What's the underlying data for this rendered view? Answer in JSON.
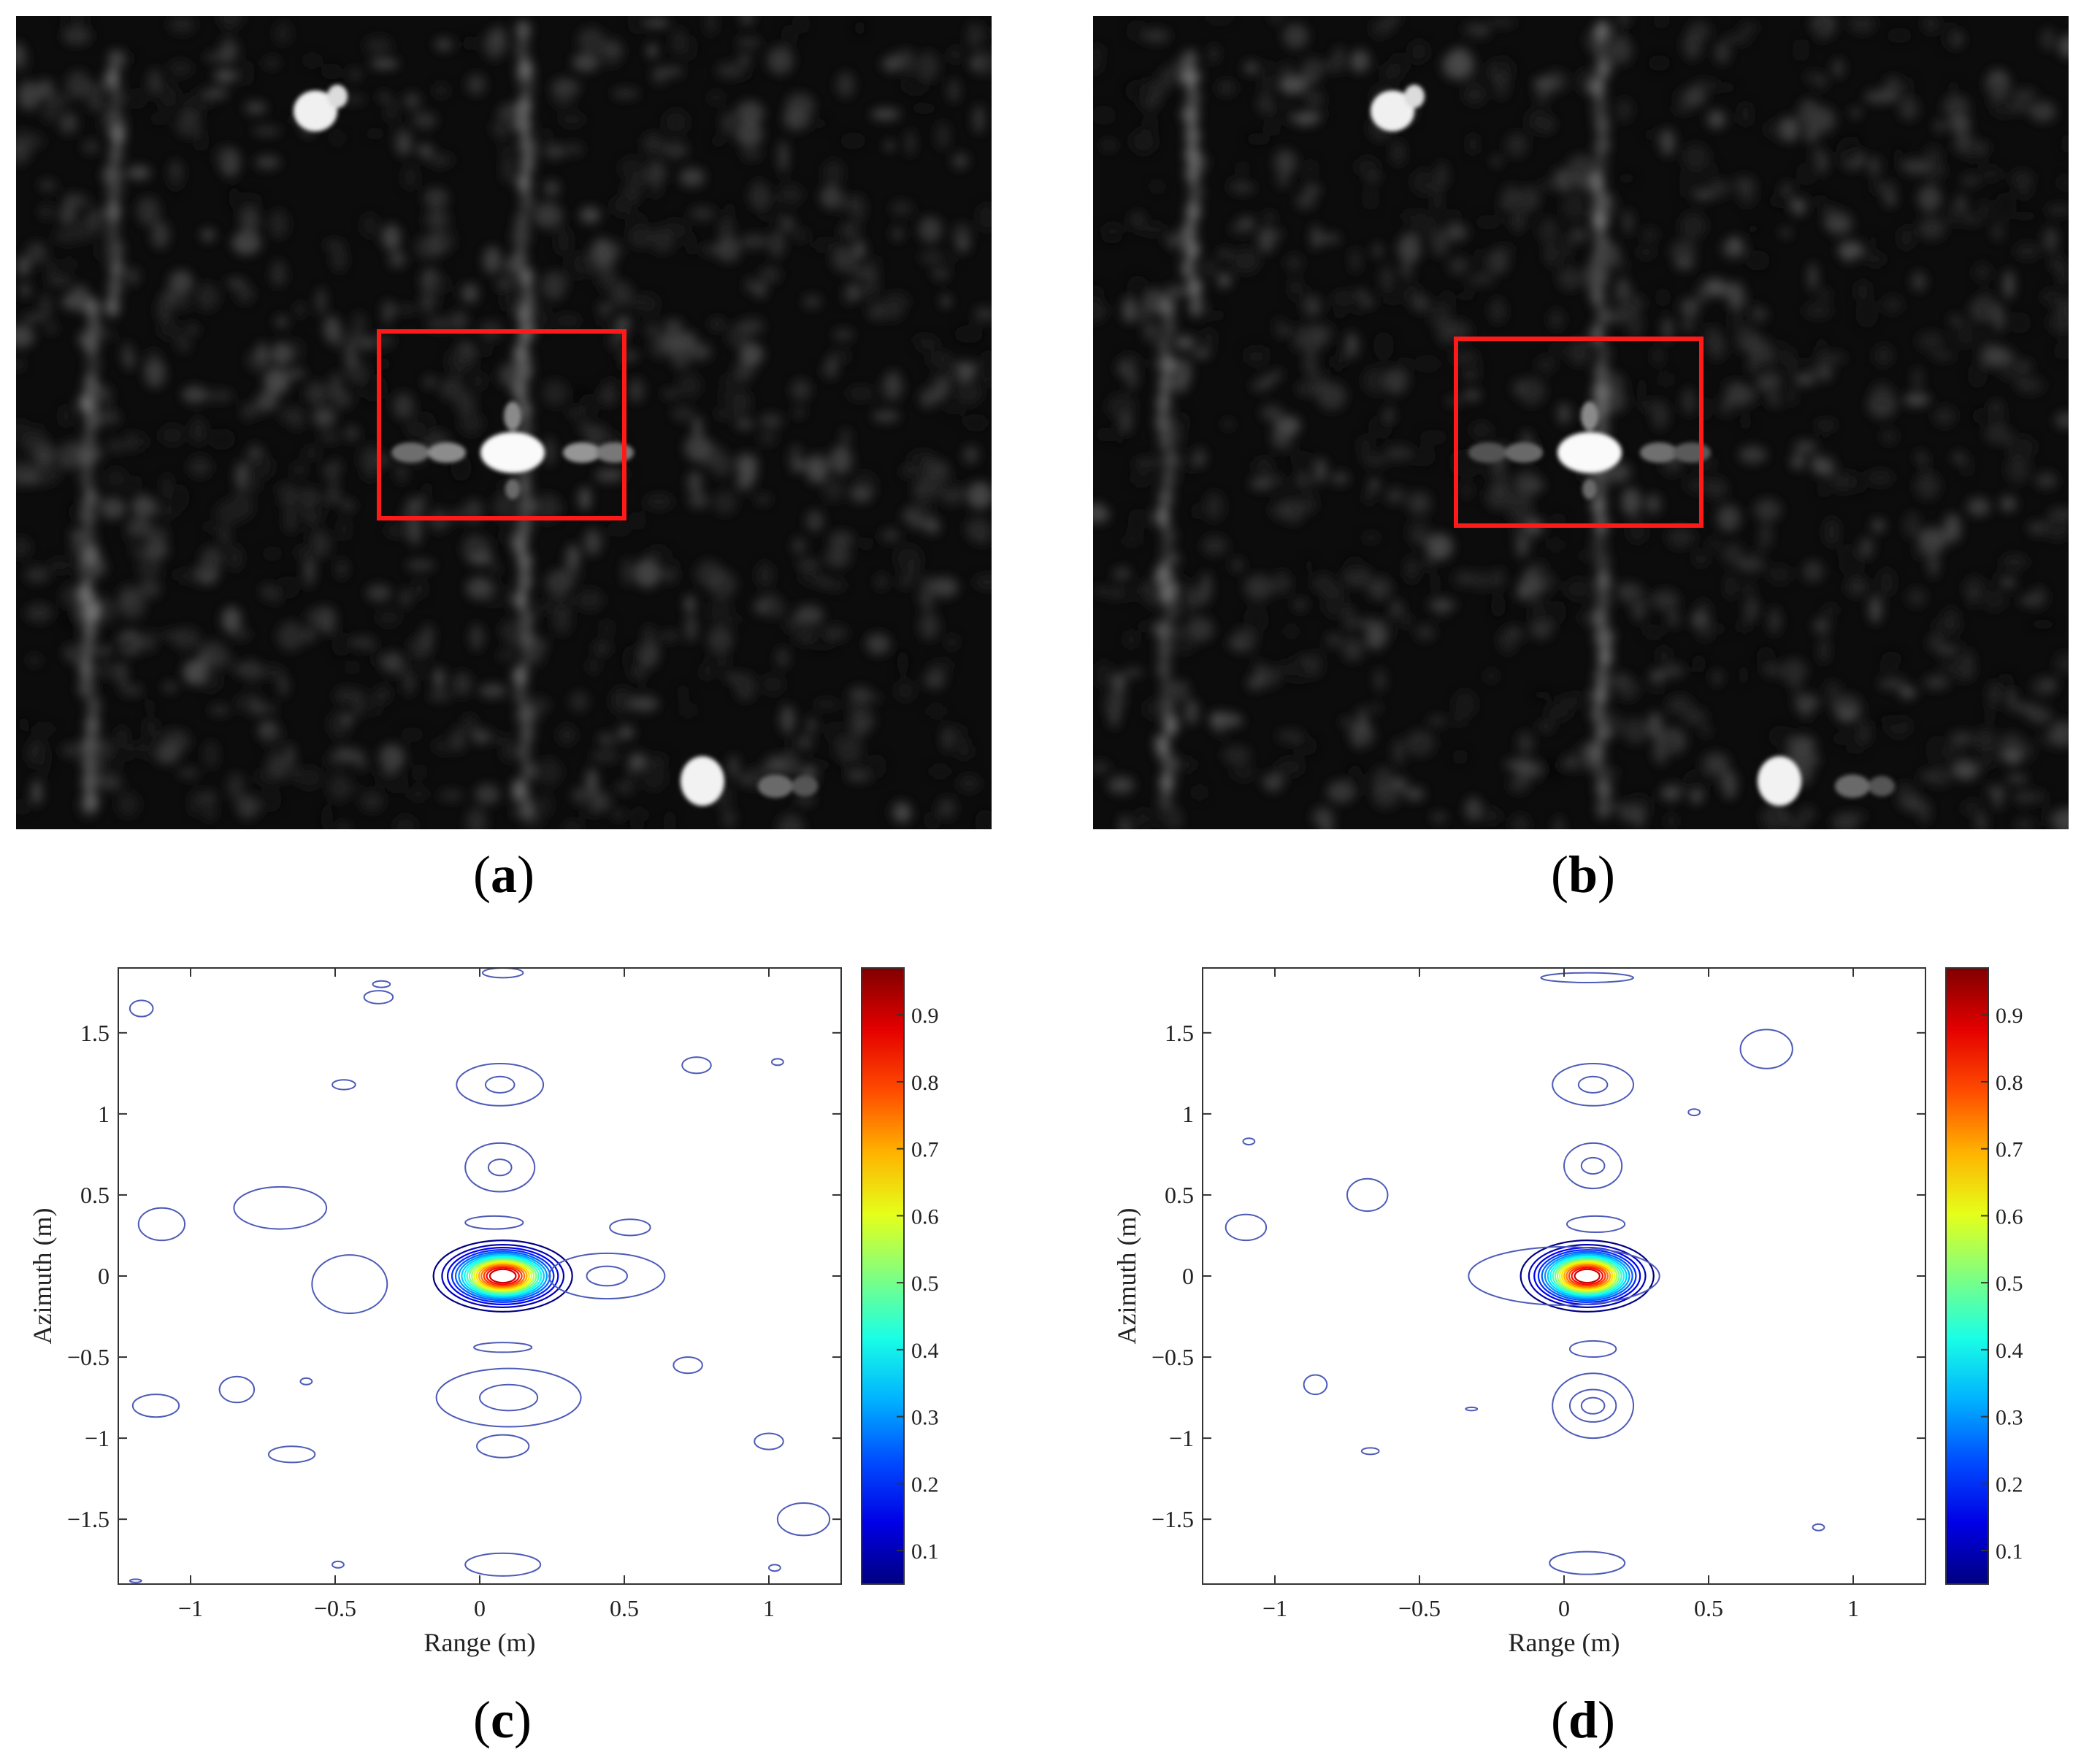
{
  "captions": {
    "a": {
      "letter": "a"
    },
    "b": {
      "letter": "b"
    },
    "c": {
      "letter": "c"
    },
    "d": {
      "letter": "d"
    }
  },
  "sar_images": [
    {
      "id": "a",
      "highlight_color": "#ff1a1a",
      "colormap": "grayscale"
    },
    {
      "id": "b",
      "highlight_color": "#ff1a1a",
      "colormap": "grayscale"
    }
  ],
  "chart_data": [
    {
      "id": "c",
      "type": "contour",
      "title": "",
      "xlabel": "Range (m)",
      "ylabel": "Azimuth (m)",
      "xlim": [
        -1.25,
        1.25
      ],
      "ylim": [
        -1.9,
        1.9
      ],
      "xticks": [
        -1,
        -0.5,
        0,
        0.5,
        1
      ],
      "xtick_labels": [
        "−1",
        "−0.5",
        "0",
        "0.5",
        "1"
      ],
      "yticks": [
        1.5,
        1,
        0.5,
        0,
        -0.5,
        -1,
        -1.5
      ],
      "ytick_labels": [
        "1.5",
        "1",
        "0.5",
        "0",
        "−0.5",
        "−1",
        "−1.5"
      ],
      "peak": {
        "x": 0.08,
        "y": 0.0
      },
      "contour_levels": [
        0.05,
        0.1,
        0.15,
        0.2,
        0.25,
        0.3,
        0.35,
        0.4,
        0.45,
        0.5,
        0.55,
        0.6,
        0.65,
        0.7,
        0.75,
        0.8,
        0.85,
        0.9
      ],
      "colorbar": {
        "min": 0.05,
        "max": 0.97,
        "ticks": [
          0.1,
          0.2,
          0.3,
          0.4,
          0.5,
          0.6,
          0.7,
          0.8,
          0.9
        ],
        "tick_labels": [
          "0.1",
          "0.2",
          "0.3",
          "0.4",
          "0.5",
          "0.6",
          "0.7",
          "0.8",
          "0.9"
        ],
        "colormap": "jet"
      }
    },
    {
      "id": "d",
      "type": "contour",
      "title": "",
      "xlabel": "Range (m)",
      "ylabel": "Azimuth (m)",
      "xlim": [
        -1.25,
        1.25
      ],
      "ylim": [
        -1.9,
        1.9
      ],
      "xticks": [
        -1,
        -0.5,
        0,
        0.5,
        1
      ],
      "xtick_labels": [
        "−1",
        "−0.5",
        "0",
        "0.5",
        "1"
      ],
      "yticks": [
        1.5,
        1,
        0.5,
        0,
        -0.5,
        -1,
        -1.5
      ],
      "ytick_labels": [
        "1.5",
        "1",
        "0.5",
        "0",
        "−0.5",
        "−1",
        "−1.5"
      ],
      "peak": {
        "x": 0.08,
        "y": 0.0
      },
      "contour_levels": [
        0.05,
        0.1,
        0.15,
        0.2,
        0.25,
        0.3,
        0.35,
        0.4,
        0.45,
        0.5,
        0.55,
        0.6,
        0.65,
        0.7,
        0.75,
        0.8,
        0.85,
        0.9
      ],
      "colorbar": {
        "min": 0.05,
        "max": 0.97,
        "ticks": [
          0.1,
          0.2,
          0.3,
          0.4,
          0.5,
          0.6,
          0.7,
          0.8,
          0.9
        ],
        "tick_labels": [
          "0.1",
          "0.2",
          "0.3",
          "0.4",
          "0.5",
          "0.6",
          "0.7",
          "0.8",
          "0.9"
        ],
        "colormap": "jet"
      }
    }
  ]
}
